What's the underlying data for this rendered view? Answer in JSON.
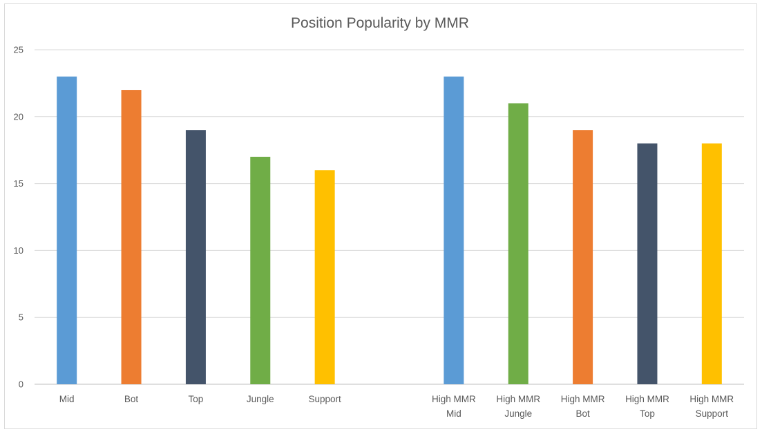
{
  "chart_data": {
    "type": "bar",
    "title": "Position Popularity by MMR",
    "xlabel": "",
    "ylabel": "",
    "ylim": [
      0,
      25
    ],
    "y_ticks": [
      0,
      5,
      10,
      15,
      20,
      25
    ],
    "grid": true,
    "legend": "none",
    "categories": [
      [
        "Mid"
      ],
      [
        "Bot"
      ],
      [
        "Top"
      ],
      [
        "Jungle"
      ],
      [
        "Support"
      ],
      [
        ""
      ],
      [
        "High MMR",
        "Mid"
      ],
      [
        "High MMR",
        "Jungle"
      ],
      [
        "High MMR",
        "Bot"
      ],
      [
        "High MMR",
        "Top"
      ],
      [
        "High MMR",
        "Support"
      ]
    ],
    "values": [
      23,
      22,
      19,
      17,
      16,
      null,
      23,
      21,
      19,
      18,
      18
    ],
    "colors": [
      "#5b9bd5",
      "#ed7d31",
      "#44546a",
      "#70ad47",
      "#ffc000",
      null,
      "#5b9bd5",
      "#70ad47",
      "#ed7d31",
      "#44546a",
      "#ffc000"
    ]
  }
}
